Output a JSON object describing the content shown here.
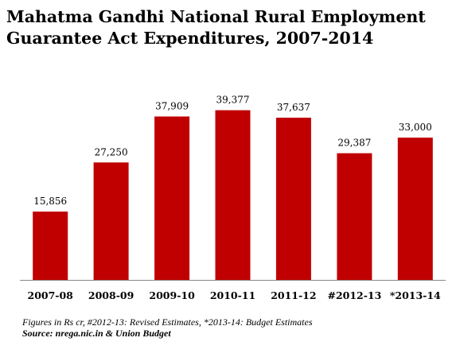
{
  "title_lines": [
    "Mahatma Gandhi National Rural Employment",
    "Guarantee Act  Expenditures, 2007-2014"
  ],
  "footnote": "Figures in Rs cr, #2012-13: Revised Estimates, *2013-14: Budget Estimates",
  "source": "Source: nrega.nic.in & Union Budget",
  "chart_data": {
    "type": "bar",
    "title": "Mahatma Gandhi National Rural Employment Guarantee Act  Expenditures, 2007-2014",
    "categories": [
      "2007-08",
      "2008-09",
      "2009-10",
      "2010-11",
      "2011-12",
      "#2012-13",
      "*2013-14"
    ],
    "values": [
      15856,
      27250,
      37909,
      39377,
      37637,
      29387,
      33000
    ],
    "value_labels": [
      "15,856",
      "27,250",
      "37,909",
      "39,377",
      "37,637",
      "29,387",
      "33,000"
    ],
    "xlabel": "",
    "ylabel": "",
    "ylim": [
      0,
      45000
    ],
    "grid": false,
    "bar_color": "#c00000"
  }
}
